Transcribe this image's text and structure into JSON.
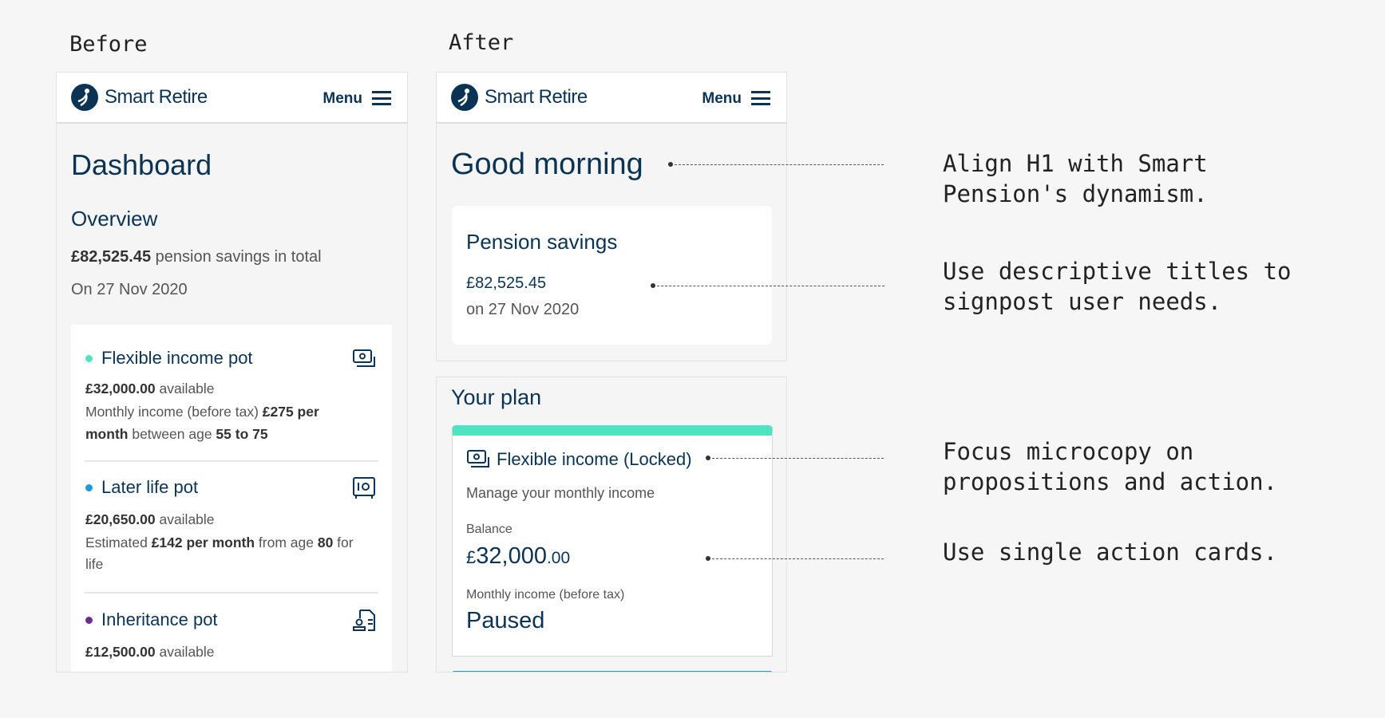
{
  "labels": {
    "before": "Before",
    "after": "After"
  },
  "header": {
    "brand": "Smart Retire",
    "menu": "Menu"
  },
  "before": {
    "title": "Dashboard",
    "overview": "Overview",
    "total_amount": "£82,525.45",
    "total_text": " pension savings in total",
    "date": "On 27 Nov 2020",
    "pots": [
      {
        "name": "Flexible income pot",
        "color": "#50e3c2",
        "icon": "cash-icon",
        "amount": "£32,000.00",
        "available": " available",
        "l1a": "Monthly income (before tax) ",
        "l1b": "£275 per",
        "l2a": "month",
        "l2b": " between age ",
        "l2c": "55 to 75"
      },
      {
        "name": "Later life pot",
        "color": "#1a9bd7",
        "icon": "safe-icon",
        "amount": "£20,650.00",
        "available": " available",
        "l1a": "Estimated ",
        "l1b": "£142 per month",
        "l1c": " from age ",
        "l1d": "80",
        "l1e": " for",
        "l2a": "life"
      },
      {
        "name": "Inheritance pot",
        "color": "#6b2c91",
        "icon": "will-document-icon",
        "amount": "£12,500.00",
        "available": " available"
      }
    ]
  },
  "after": {
    "title": "Good morning",
    "savings_title": "Pension savings",
    "savings_amount": "£82,525.45",
    "savings_date": "on 27 Nov 2020",
    "plan_title": "Your plan",
    "card": {
      "accent": "#50e3c2",
      "title": "Flexible income (Locked)",
      "subtitle": "Manage your monthly income",
      "balance_label": "Balance",
      "currency": "£",
      "balance_main": "32,000",
      "balance_pence": ".00",
      "income_label": "Monthly income (before tax)",
      "income_value": "Paused"
    }
  },
  "annotations": [
    "Align H1 with Smart\nPension's dynamism.",
    "Use descriptive titles to\nsignpost user needs.",
    "Focus microcopy on\npropositions and action.",
    "Use single action cards."
  ]
}
